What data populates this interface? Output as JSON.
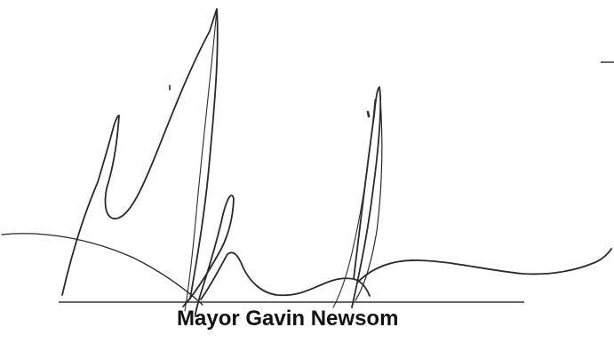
{
  "signature_block": {
    "signer_name": "Mayor Gavin Newsom",
    "signature_kind": "handwritten-signature",
    "ink_color": "#2a2a2a",
    "signature_line_color": "#333333",
    "text_color": "#111111"
  }
}
